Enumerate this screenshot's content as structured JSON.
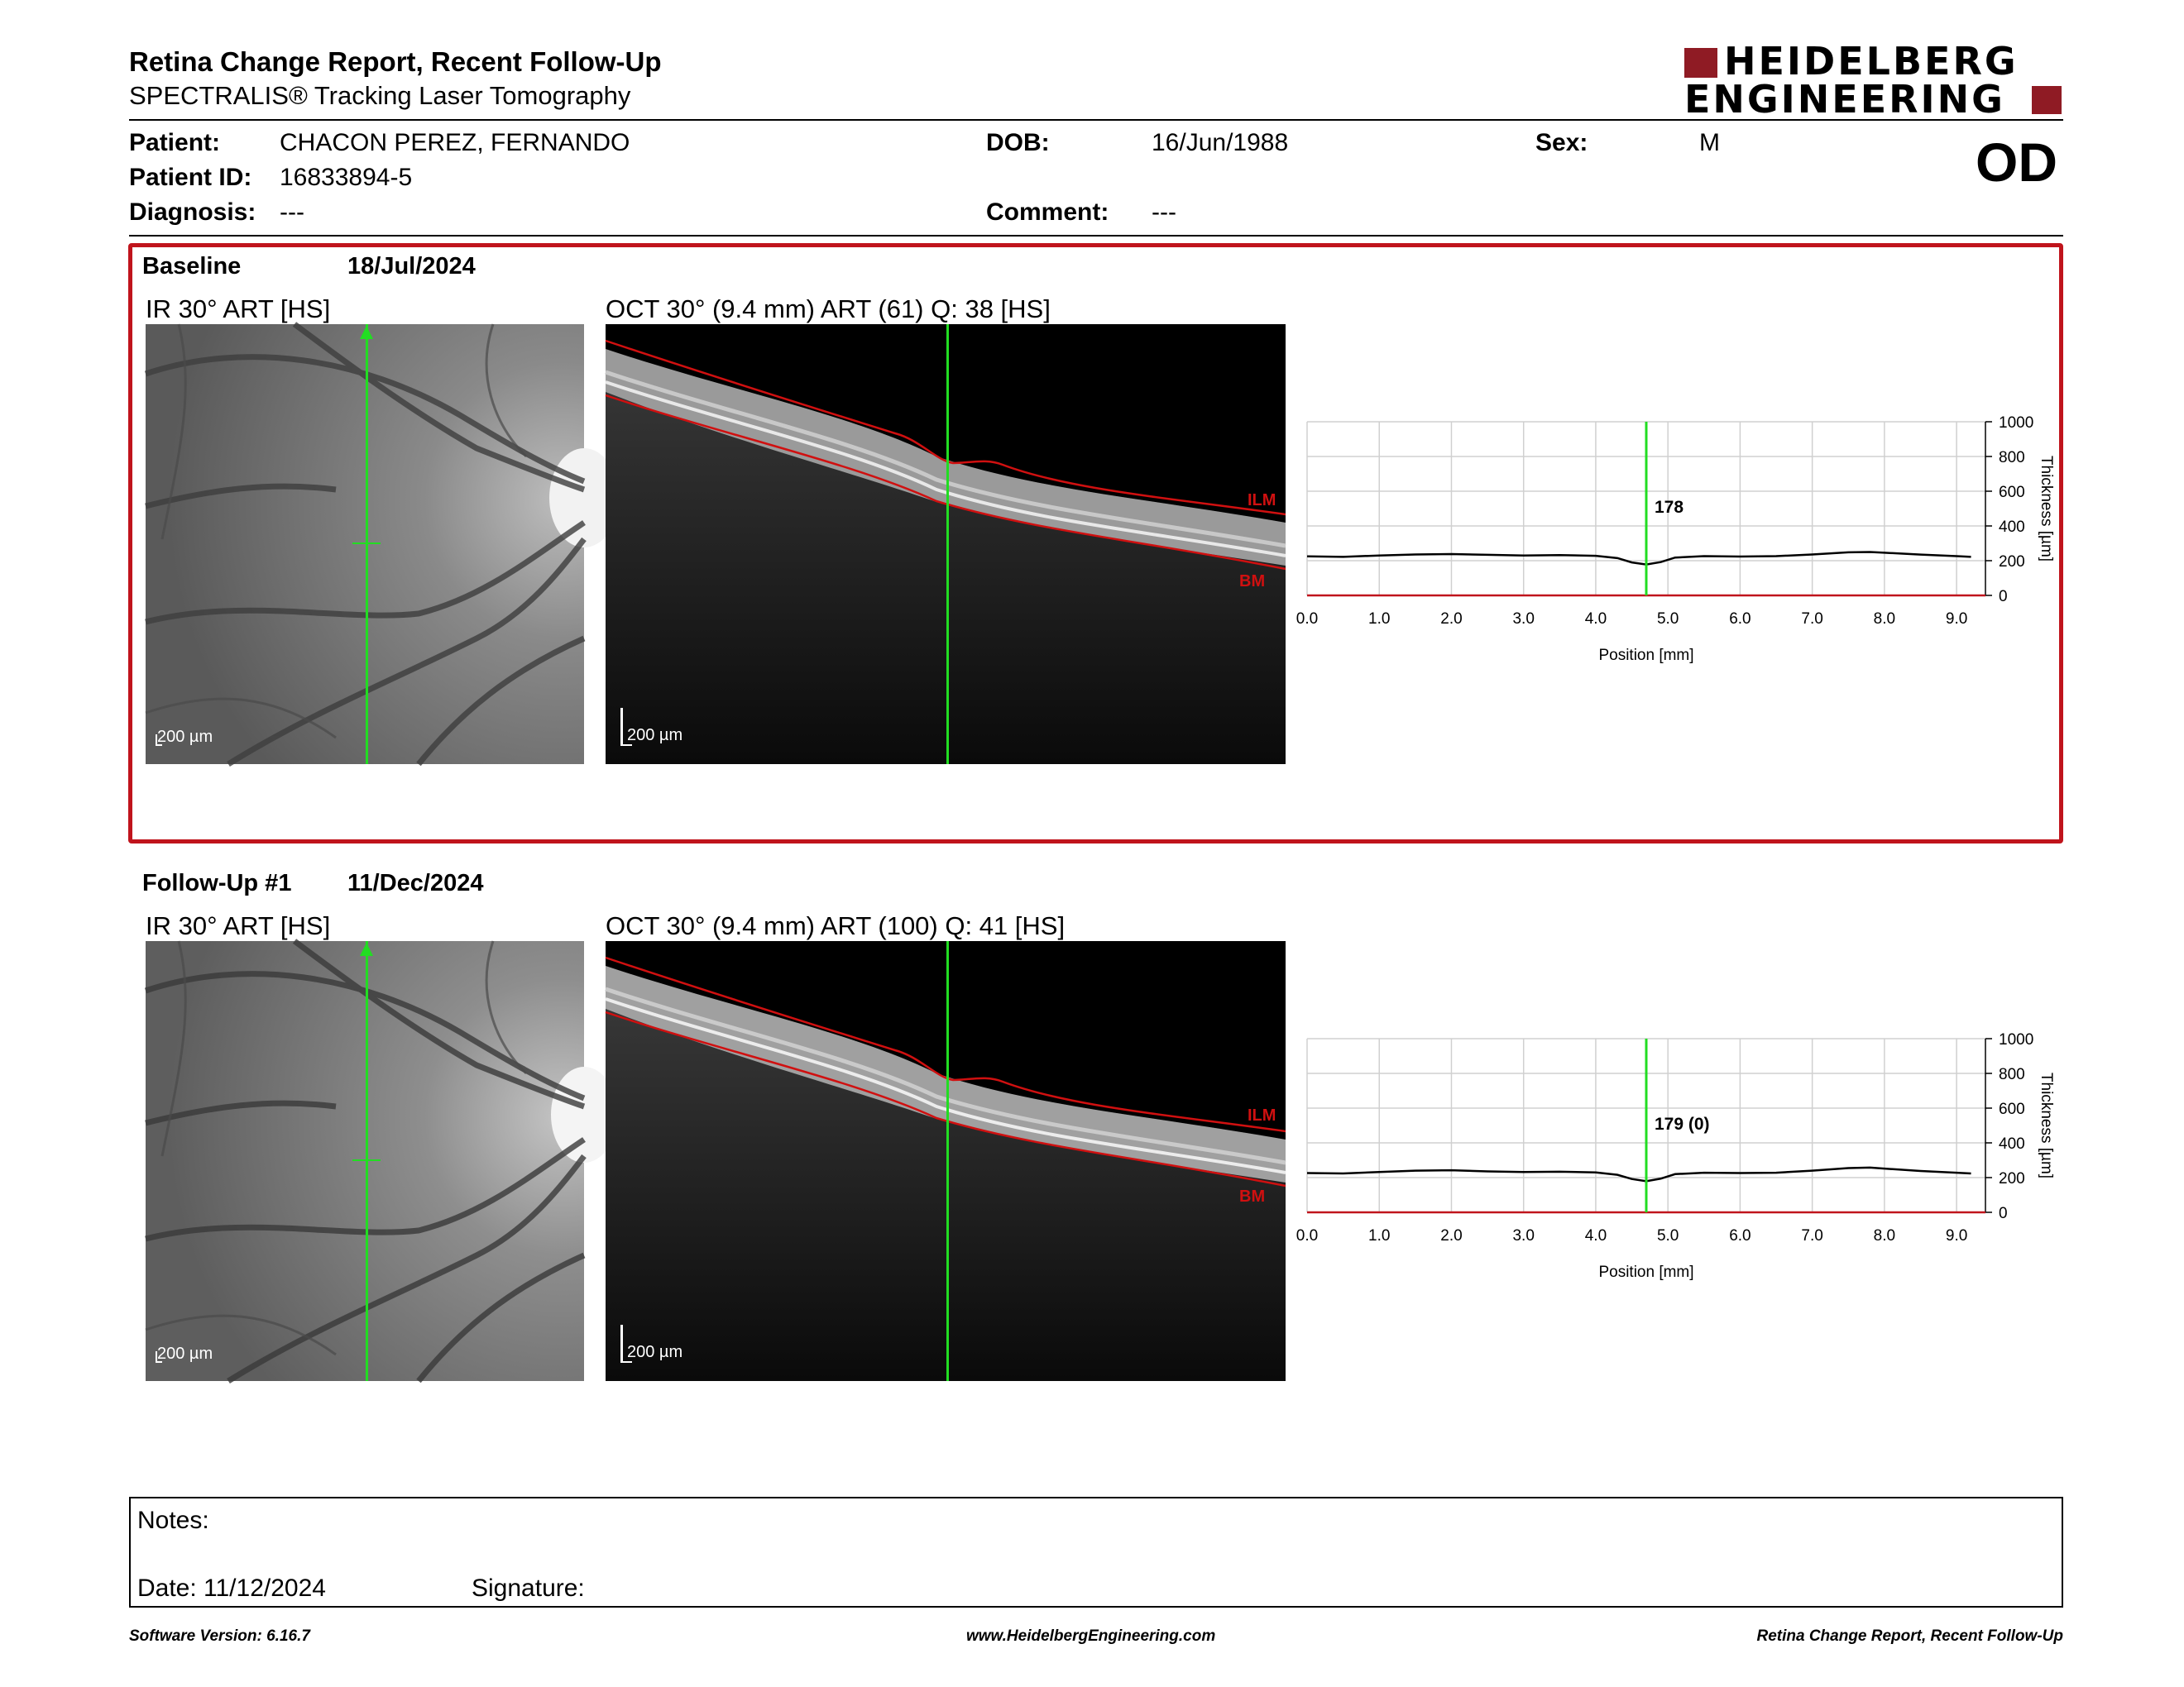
{
  "header": {
    "title": "Retina Change Report, Recent Follow-Up",
    "subtitle": "SPECTRALIS® Tracking Laser Tomography",
    "logo_line1": "HEIDELBERG",
    "logo_line2": "ENGINEERING",
    "eye": "OD"
  },
  "patient": {
    "patient_label": "Patient:",
    "patient_value": "CHACON PEREZ, FERNANDO",
    "id_label": "Patient ID:",
    "id_value": "16833894-5",
    "diagnosis_label": "Diagnosis:",
    "diagnosis_value": "---",
    "dob_label": "DOB:",
    "dob_value": "16/Jun/1988",
    "comment_label": "Comment:",
    "comment_value": "---",
    "sex_label": "Sex:",
    "sex_value": "M"
  },
  "baseline": {
    "label": "Baseline",
    "date": "18/Jul/2024",
    "ir_title": "IR 30° ART [HS]",
    "oct_title": "OCT 30° (9.4 mm) ART (61) Q: 38 [HS]",
    "ir_scale": "200 µm",
    "oct_scale": "200 µm",
    "ilm": "ILM",
    "bm": "BM"
  },
  "followup": {
    "label": "Follow-Up #1",
    "date": "11/Dec/2024",
    "ir_title": "IR 30° ART [HS]",
    "oct_title": "OCT 30° (9.4 mm) ART (100) Q: 41 [HS]",
    "ir_scale": "200 µm",
    "oct_scale": "200 µm",
    "ilm": "ILM",
    "bm": "BM"
  },
  "chart_data": [
    {
      "type": "line",
      "xlabel": "Position [mm]",
      "ylabel": "Thickness [µm]",
      "xlim": [
        0,
        9.4
      ],
      "ylim": [
        0,
        1000
      ],
      "x_ticks": [
        "0.0",
        "1.0",
        "2.0",
        "3.0",
        "4.0",
        "5.0",
        "6.0",
        "7.0",
        "8.0",
        "9.0"
      ],
      "y_ticks": [
        "0",
        "200",
        "400",
        "600",
        "800",
        "1000"
      ],
      "marker_x": 4.7,
      "marker_label": "178",
      "x": [
        0.0,
        0.5,
        1.0,
        1.5,
        2.0,
        2.5,
        3.0,
        3.5,
        4.0,
        4.3,
        4.5,
        4.7,
        4.9,
        5.1,
        5.5,
        6.0,
        6.5,
        7.0,
        7.5,
        7.8,
        8.0,
        8.5,
        9.0,
        9.2
      ],
      "y": [
        225,
        222,
        230,
        236,
        238,
        234,
        230,
        232,
        228,
        215,
        190,
        178,
        192,
        218,
        226,
        224,
        226,
        236,
        248,
        250,
        246,
        235,
        226,
        222
      ],
      "colors": {
        "line": "#000000",
        "marker": "#22dd22",
        "baseline": "#c0141c"
      }
    },
    {
      "type": "line",
      "xlabel": "Position [mm]",
      "ylabel": "Thickness [µm]",
      "xlim": [
        0,
        9.4
      ],
      "ylim": [
        0,
        1000
      ],
      "x_ticks": [
        "0.0",
        "1.0",
        "2.0",
        "3.0",
        "4.0",
        "5.0",
        "6.0",
        "7.0",
        "8.0",
        "9.0"
      ],
      "y_ticks": [
        "0",
        "200",
        "400",
        "600",
        "800",
        "1000"
      ],
      "marker_x": 4.7,
      "marker_label": "179 (0)",
      "x": [
        0.0,
        0.5,
        1.0,
        1.5,
        2.0,
        2.5,
        3.0,
        3.5,
        4.0,
        4.3,
        4.5,
        4.7,
        4.9,
        5.1,
        5.5,
        6.0,
        6.5,
        7.0,
        7.5,
        7.8,
        8.0,
        8.5,
        9.0,
        9.2
      ],
      "y": [
        226,
        224,
        232,
        240,
        242,
        236,
        232,
        234,
        230,
        216,
        192,
        179,
        194,
        220,
        228,
        226,
        228,
        240,
        255,
        258,
        252,
        238,
        228,
        224
      ],
      "colors": {
        "line": "#000000",
        "marker": "#22dd22",
        "baseline": "#c0141c"
      }
    }
  ],
  "notes": {
    "notes_label": "Notes:",
    "date_label": "Date: 11/12/2024",
    "signature_label": "Signature:"
  },
  "footer": {
    "software": "Software Version: 6.16.7",
    "website": "www.HeidelbergEngineering.com",
    "report": "Retina Change Report, Recent Follow-Up"
  },
  "colors": {
    "accent": "#c0141c",
    "scan_line": "#22dd22"
  }
}
